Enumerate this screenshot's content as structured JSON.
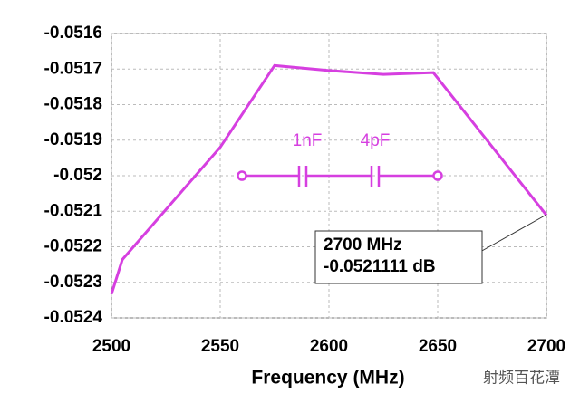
{
  "chart_data": {
    "type": "line",
    "x_label": "Frequency (MHz)",
    "x": [
      2500,
      2505,
      2550,
      2575,
      2600,
      2625,
      2648,
      2700
    ],
    "series": [
      {
        "color": "#d63fe0",
        "values": [
          -0.052333,
          -0.052236,
          -0.05192,
          -0.05169,
          -0.051704,
          -0.051715,
          -0.05171,
          -0.0521111
        ]
      }
    ],
    "xlim": [
      2500,
      2700
    ],
    "xticks": [
      2500,
      2550,
      2600,
      2650,
      2700
    ],
    "ylim": [
      -0.0524,
      -0.0516
    ],
    "yticks": [
      -0.0516,
      -0.0517,
      -0.0518,
      -0.0519,
      -0.052,
      -0.0521,
      -0.0522,
      -0.0523,
      -0.0524
    ],
    "grid": true,
    "annotation": {
      "line1": "2700 MHz",
      "line2": "-0.0521111 dB"
    },
    "schematic": {
      "c1": "1nF",
      "c2": "4pF"
    },
    "watermark": "射频百花潭"
  }
}
